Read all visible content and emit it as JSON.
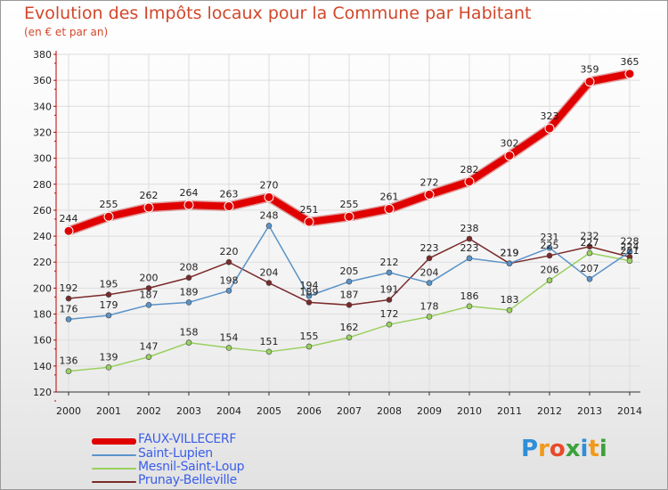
{
  "chart_data": {
    "type": "line",
    "title": "Evolution des Impôts locaux pour la Commune par Habitant",
    "subtitle": "(en € et par an)",
    "xlabel": "",
    "ylabel": "",
    "ylim": [
      120,
      380
    ],
    "yticks": [
      120,
      140,
      160,
      180,
      200,
      220,
      240,
      260,
      280,
      300,
      320,
      340,
      360,
      380
    ],
    "categories": [
      "2000",
      "2001",
      "2002",
      "2003",
      "2004",
      "2005",
      "2006",
      "2007",
      "2008",
      "2009",
      "2010",
      "2011",
      "2012",
      "2013",
      "2014"
    ],
    "series": [
      {
        "name": "Prunay-Belleville",
        "color": "#7a2a2a",
        "values": [
          192,
          195,
          200,
          208,
          220,
          204,
          189,
          187,
          191,
          223,
          238,
          219,
          225,
          232,
          224
        ]
      },
      {
        "name": "Mesnil-Saint-Loup",
        "color": "#9ad060",
        "values": [
          136,
          139,
          147,
          158,
          154,
          151,
          155,
          162,
          172,
          178,
          186,
          183,
          206,
          227,
          221
        ]
      },
      {
        "name": "Saint-Lupien",
        "color": "#5a93c8",
        "values": [
          176,
          179,
          187,
          189,
          198,
          248,
          194,
          205,
          212,
          204,
          223,
          219,
          231,
          207,
          228
        ]
      },
      {
        "name": "FAUX-VILLECERF",
        "color": "#e00000",
        "values": [
          244,
          255,
          262,
          264,
          263,
          270,
          251,
          255,
          261,
          272,
          282,
          302,
          323,
          359,
          365
        ]
      }
    ],
    "legend": [
      "FAUX-VILLECERF",
      "Saint-Lupien",
      "Mesnil-Saint-Loup",
      "Prunay-Belleville"
    ],
    "legend_position": "bottom-left"
  },
  "logo": {
    "text": "Proxiti",
    "letters": [
      "P",
      "r",
      "o",
      "x",
      "i",
      "t",
      "i"
    ],
    "colors": [
      "#2e8fd8",
      "#f09a1a",
      "#e94a2a",
      "#3aa23a",
      "#2e8fd8",
      "#f09a1a",
      "#3aa23a"
    ]
  }
}
